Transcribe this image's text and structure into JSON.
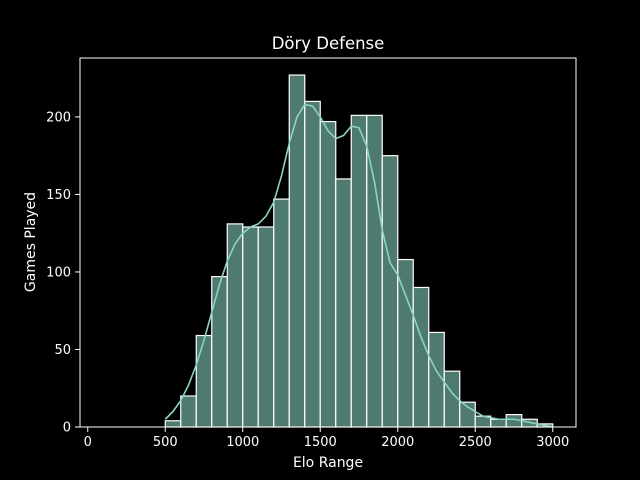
{
  "chart_data": {
    "type": "bar",
    "title": "Döry Defense",
    "xlabel": "Elo Range",
    "ylabel": "Games Played",
    "xlim": [
      -50,
      3150
    ],
    "ylim": [
      0,
      238
    ],
    "xticks": [
      0,
      500,
      1000,
      1500,
      2000,
      2500,
      3000
    ],
    "yticks": [
      0,
      50,
      100,
      150,
      200
    ],
    "grid": false,
    "bin_width": 100,
    "bins": [
      {
        "start": 100,
        "end": 200,
        "count": 0
      },
      {
        "start": 200,
        "end": 300,
        "count": 0
      },
      {
        "start": 300,
        "end": 400,
        "count": 0
      },
      {
        "start": 400,
        "end": 500,
        "count": 0
      },
      {
        "start": 500,
        "end": 600,
        "count": 4
      },
      {
        "start": 600,
        "end": 700,
        "count": 20
      },
      {
        "start": 700,
        "end": 800,
        "count": 59
      },
      {
        "start": 800,
        "end": 900,
        "count": 97
      },
      {
        "start": 900,
        "end": 1000,
        "count": 131
      },
      {
        "start": 1000,
        "end": 1100,
        "count": 129
      },
      {
        "start": 1100,
        "end": 1200,
        "count": 129
      },
      {
        "start": 1200,
        "end": 1300,
        "count": 147
      },
      {
        "start": 1300,
        "end": 1400,
        "count": 227
      },
      {
        "start": 1400,
        "end": 1500,
        "count": 210
      },
      {
        "start": 1500,
        "end": 1600,
        "count": 197
      },
      {
        "start": 1600,
        "end": 1700,
        "count": 160
      },
      {
        "start": 1700,
        "end": 1800,
        "count": 201
      },
      {
        "start": 1800,
        "end": 1900,
        "count": 201
      },
      {
        "start": 1900,
        "end": 2000,
        "count": 175
      },
      {
        "start": 2000,
        "end": 2100,
        "count": 108
      },
      {
        "start": 2100,
        "end": 2200,
        "count": 90
      },
      {
        "start": 2200,
        "end": 2300,
        "count": 61
      },
      {
        "start": 2300,
        "end": 2400,
        "count": 36
      },
      {
        "start": 2400,
        "end": 2500,
        "count": 16
      },
      {
        "start": 2500,
        "end": 2600,
        "count": 7
      },
      {
        "start": 2600,
        "end": 2700,
        "count": 5
      },
      {
        "start": 2700,
        "end": 2800,
        "count": 8
      },
      {
        "start": 2800,
        "end": 2900,
        "count": 5
      },
      {
        "start": 2900,
        "end": 3000,
        "count": 2
      }
    ],
    "kde": {
      "x": [
        500,
        550,
        600,
        650,
        700,
        750,
        800,
        850,
        900,
        950,
        1000,
        1050,
        1100,
        1150,
        1200,
        1250,
        1300,
        1350,
        1400,
        1450,
        1500,
        1550,
        1600,
        1650,
        1700,
        1750,
        1800,
        1850,
        1900,
        1950,
        2000,
        2050,
        2100,
        2150,
        2200,
        2250,
        2300,
        2350,
        2400,
        2450,
        2500,
        2550,
        2600,
        2650,
        2700,
        2750,
        2800,
        2850,
        2900,
        2950,
        3000
      ],
      "y": [
        5,
        10,
        17,
        27,
        40,
        56,
        74,
        92,
        107,
        118,
        125,
        129,
        131,
        136,
        145,
        162,
        183,
        200,
        208,
        207,
        200,
        191,
        186,
        188,
        194,
        193,
        181,
        158,
        127,
        106,
        98,
        85,
        72,
        58,
        46,
        36,
        29,
        22,
        17,
        13,
        10,
        7,
        6,
        5,
        5,
        5,
        4,
        3,
        2,
        1,
        0
      ]
    },
    "colors": {
      "background": "#000000",
      "bar_fill": "#4e7a70",
      "bar_edge": "#ffffff",
      "kde_line": "#8dd3c7",
      "axes": "#ffffff",
      "text": "#ffffff"
    }
  }
}
